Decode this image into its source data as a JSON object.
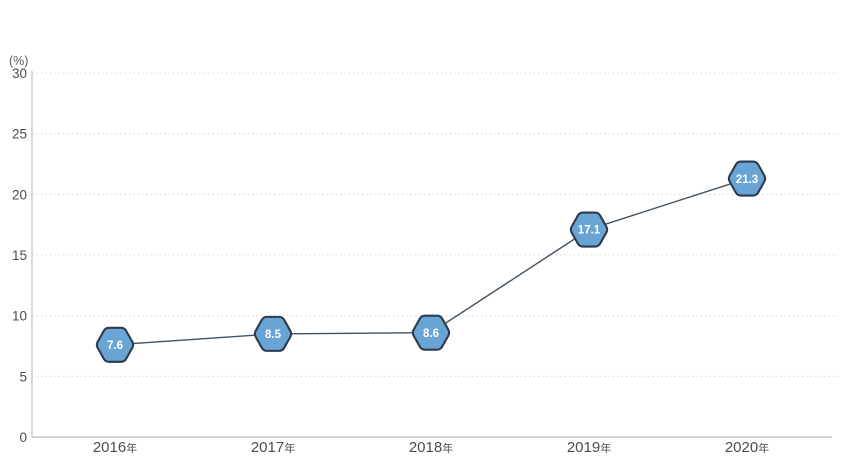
{
  "chart_data": {
    "type": "line",
    "title": "",
    "unit_label": "(%)",
    "categories": [
      "2016年",
      "2017年",
      "2018年",
      "2019年",
      "2020年"
    ],
    "values": [
      7.6,
      8.5,
      8.6,
      17.1,
      21.3
    ],
    "point_labels": [
      "7.6",
      "8.5",
      "8.6",
      "17.1",
      "21.3"
    ],
    "xlabel": "",
    "ylabel": "(%)",
    "ylim": [
      0,
      30
    ],
    "yticks": [
      0,
      5,
      10,
      15,
      20,
      25,
      30
    ],
    "ytick_labels": [
      "0",
      "5",
      "10",
      "15",
      "20",
      "25",
      "30"
    ],
    "grid": "horizontal-dotted",
    "legend": "none",
    "marker_shape": "hexagon",
    "colors": {
      "background": "#ffffff",
      "marker_fill": "#68a4d4",
      "marker_border": "#2c3b4d",
      "marker_text": "#ffffff",
      "line": "#42505e",
      "grid": "#d2d2d2",
      "axis": "#c9c9c9",
      "tick_text": "#4c4c4c",
      "unit_text": "#595959"
    }
  }
}
